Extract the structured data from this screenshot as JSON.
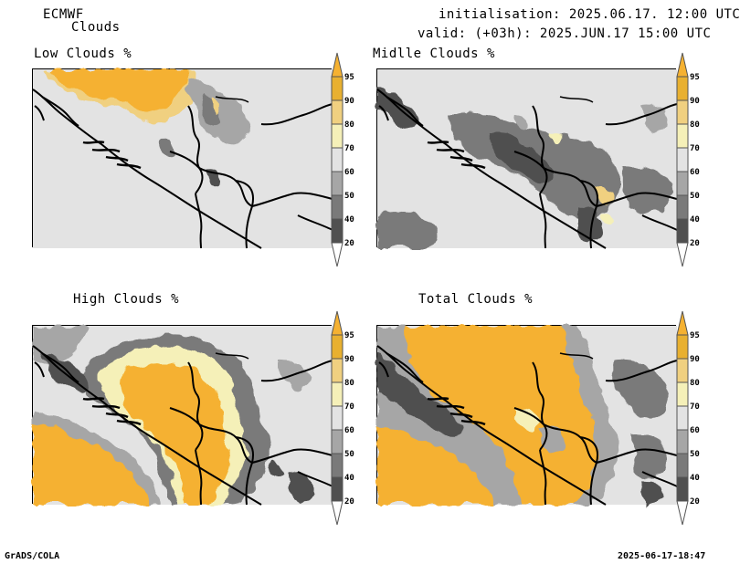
{
  "header": {
    "model": "ECMWF",
    "product": "Clouds",
    "init_line": "initialisation: 2025.06.17. 12:00 UTC",
    "valid_line": "valid: (+03h): 2025.JUN.17 15:00 UTC"
  },
  "panels": [
    {
      "id": "low",
      "title": "Low Clouds %"
    },
    {
      "id": "middle",
      "title": "Midlle Clouds %"
    },
    {
      "id": "high",
      "title": "High Clouds %"
    },
    {
      "id": "total",
      "title": "Total Clouds %"
    }
  ],
  "colorbar": {
    "levels": [
      "20",
      "40",
      "50",
      "60",
      "70",
      "80",
      "90",
      "95"
    ],
    "colors": [
      "#ffffff",
      "#505050",
      "#7a7a7a",
      "#a6a6a6",
      "#e3e3e3",
      "#f5f0b8",
      "#f0d080",
      "#e8b030",
      "#f5b131"
    ]
  },
  "footer": {
    "left": "GrADS/COLA",
    "right": "2025-06-17-18:47"
  }
}
